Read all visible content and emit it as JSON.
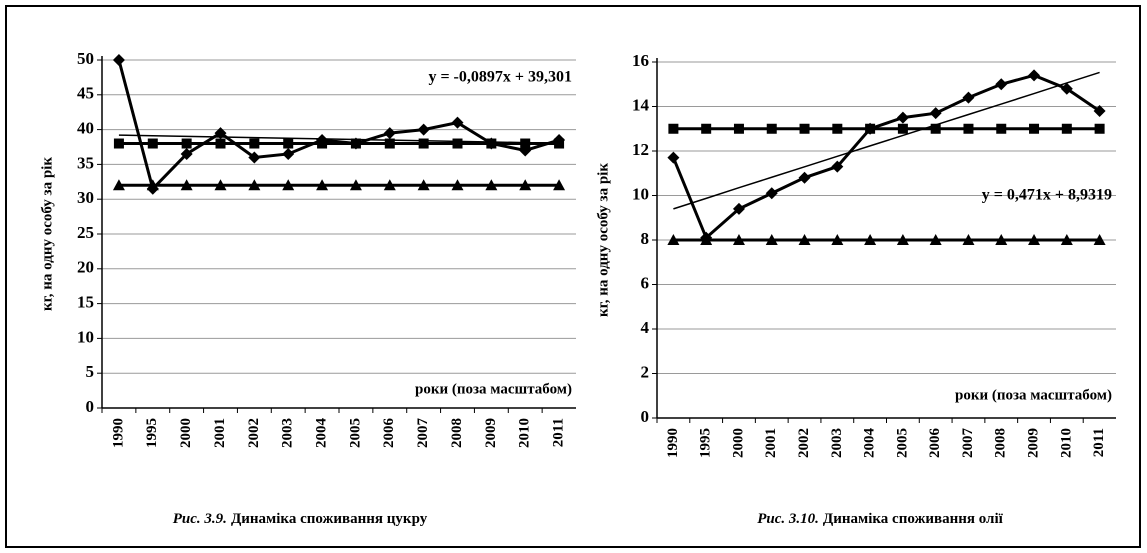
{
  "chart_data": [
    {
      "type": "line",
      "categories": [
        "1990",
        "1995",
        "2000",
        "2001",
        "2002",
        "2003",
        "2004",
        "2005",
        "2006",
        "2007",
        "2008",
        "2009",
        "2010",
        "2011"
      ],
      "series": [
        {
          "color": "#000000",
          "marker": "diamond",
          "values": [
            50,
            31.5,
            36.5,
            39.5,
            36,
            36.5,
            38.5,
            38,
            39.5,
            40,
            41,
            38,
            37,
            38.5
          ]
        },
        {
          "color": "#000000",
          "marker": "square",
          "values": [
            38,
            38,
            38,
            38,
            38,
            38,
            38,
            38,
            38,
            38,
            38,
            38,
            38,
            38
          ]
        },
        {
          "color": "#000000",
          "marker": "triangle",
          "values": [
            32,
            32,
            32,
            32,
            32,
            32,
            32,
            32,
            32,
            32,
            32,
            32,
            32,
            32
          ]
        },
        {
          "color": "#000000",
          "marker": "none",
          "values": [
            39.21,
            39.12,
            39.03,
            38.94,
            38.85,
            38.76,
            38.67,
            38.58,
            38.49,
            38.4,
            38.31,
            38.22,
            38.13,
            38.04
          ]
        }
      ],
      "ylim": [
        0,
        50
      ],
      "yticks": [
        0,
        5,
        10,
        15,
        20,
        25,
        30,
        35,
        40,
        45,
        50
      ],
      "grid": true,
      "ylabel": "кг, на одну особу за рік",
      "xlabel": "роки (поза масштабом)",
      "annotation": "y = -0,0897x + 39,301",
      "caption_label": "Рис. 3.9.",
      "caption": "Динаміка споживання цукру"
    },
    {
      "type": "line",
      "categories": [
        "1990",
        "1995",
        "2000",
        "2001",
        "2002",
        "2003",
        "2004",
        "2005",
        "2006",
        "2007",
        "2008",
        "2009",
        "2010",
        "2011"
      ],
      "series": [
        {
          "color": "#000000",
          "marker": "diamond",
          "values": [
            11.7,
            8.1,
            9.4,
            10.1,
            10.8,
            11.3,
            13.0,
            13.5,
            13.7,
            14.4,
            15.0,
            15.4,
            14.8,
            13.8
          ]
        },
        {
          "color": "#000000",
          "marker": "square",
          "values": [
            13,
            13,
            13,
            13,
            13,
            13,
            13,
            13,
            13,
            13,
            13,
            13,
            13,
            13
          ]
        },
        {
          "color": "#000000",
          "marker": "triangle",
          "values": [
            8,
            8,
            8,
            8,
            8,
            8,
            8,
            8,
            8,
            8,
            8,
            8,
            8,
            8
          ]
        },
        {
          "color": "#000000",
          "marker": "none",
          "values": [
            9.4,
            9.87,
            10.35,
            10.82,
            11.29,
            11.76,
            12.23,
            12.7,
            13.17,
            13.64,
            14.11,
            14.58,
            15.06,
            15.53
          ]
        }
      ],
      "ylim": [
        0,
        16
      ],
      "yticks": [
        0,
        2,
        4,
        6,
        8,
        10,
        12,
        14,
        16
      ],
      "grid": true,
      "ylabel": "кг, на одну особу за рік",
      "xlabel": "роки (поза масштабом)",
      "annotation": "y = 0,471x + 8,9319",
      "caption_label": "Рис. 3.10.",
      "caption": "Динаміка споживання олії"
    }
  ]
}
